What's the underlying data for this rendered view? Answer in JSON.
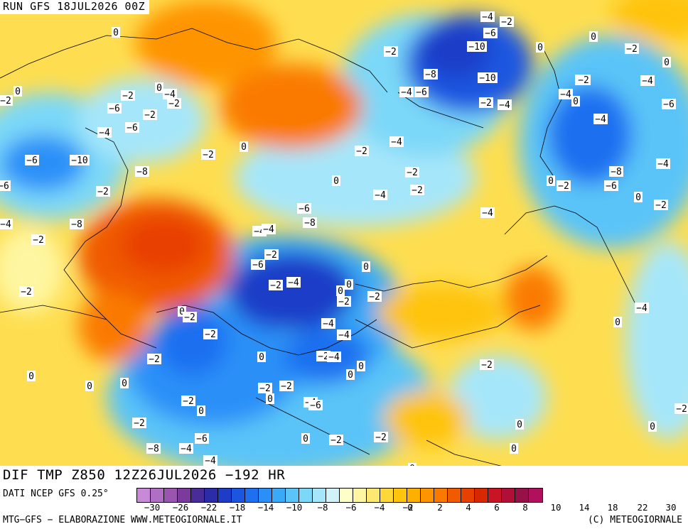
{
  "header": {
    "run": "RUN GFS 18JUL2026 00Z"
  },
  "title": "DIF TMP Z850 12Z26JUL2026 −192 HR",
  "footer": {
    "source": "DATI NCEP GFS 0.25°",
    "credit_left": "MTG−GFS − ELABORAZIONE WWW.METEOGIORNALE.IT",
    "credit_right": "(C) METEOGIORNALE"
  },
  "legend": {
    "colors": [
      "#c88ad8",
      "#b06ec4",
      "#9a55b0",
      "#7c3a9c",
      "#4a2c98",
      "#2c2ca8",
      "#1e3cc8",
      "#1a56e0",
      "#1e70f0",
      "#2a90f8",
      "#3aaaf8",
      "#5ac4f8",
      "#7cd8f8",
      "#a6e6fa",
      "#d2f2fa",
      "#fefec8",
      "#fef6a0",
      "#fee870",
      "#fed838",
      "#fec410",
      "#feb000",
      "#fe9400",
      "#fa7a00",
      "#f05a00",
      "#e84000",
      "#d82800",
      "#c81424",
      "#b01038",
      "#981048",
      "#b0105c"
    ],
    "ticks": [
      "−30",
      "−26",
      "−22",
      "−18",
      "−14",
      "−10",
      "−8",
      "−6",
      "−4",
      "−2",
      "0",
      "2",
      "4",
      "6",
      "8",
      "10",
      "14",
      "18",
      "22",
      "30"
    ]
  },
  "map_labels": [
    {
      "text": "0"
    },
    {
      "text": "−4"
    },
    {
      "text": "−2"
    },
    {
      "text": "−6"
    },
    {
      "text": "−10"
    },
    {
      "text": "−8"
    },
    {
      "text": "−10"
    },
    {
      "text": "−4"
    },
    {
      "text": "−6"
    },
    {
      "text": "−2"
    },
    {
      "text": "−4"
    },
    {
      "text": "−2"
    },
    {
      "text": "0"
    },
    {
      "text": "0"
    },
    {
      "text": "−2"
    },
    {
      "text": "−4"
    },
    {
      "text": "0"
    },
    {
      "text": "−2"
    },
    {
      "text": "−4"
    },
    {
      "text": "0"
    },
    {
      "text": "−4"
    },
    {
      "text": "−6"
    },
    {
      "text": "−8"
    },
    {
      "text": "0"
    },
    {
      "text": "−2"
    },
    {
      "text": "−6"
    },
    {
      "text": "−4"
    },
    {
      "text": "−2"
    },
    {
      "text": "0"
    },
    {
      "text": "−2"
    },
    {
      "text": "−2"
    },
    {
      "text": "0"
    },
    {
      "text": "−2"
    },
    {
      "text": "0"
    },
    {
      "text": "−4"
    },
    {
      "text": "−2"
    },
    {
      "text": "−2"
    },
    {
      "text": "−6"
    },
    {
      "text": "−4"
    },
    {
      "text": "−6"
    },
    {
      "text": "−2"
    },
    {
      "text": "0"
    },
    {
      "text": "−2"
    },
    {
      "text": "0"
    },
    {
      "text": "−4"
    },
    {
      "text": "−2"
    },
    {
      "text": "−4"
    },
    {
      "text": "−2"
    },
    {
      "text": "−4"
    },
    {
      "text": "−8"
    },
    {
      "text": "−10"
    },
    {
      "text": "−6"
    },
    {
      "text": "−6"
    },
    {
      "text": "−4"
    },
    {
      "text": "−2"
    },
    {
      "text": "−8"
    },
    {
      "text": "−2"
    },
    {
      "text": "−6"
    },
    {
      "text": "−8"
    },
    {
      "text": "−4"
    },
    {
      "text": "−4"
    },
    {
      "text": "−2"
    },
    {
      "text": "−6"
    },
    {
      "text": "−2"
    },
    {
      "text": "−4"
    },
    {
      "text": "0"
    },
    {
      "text": "0"
    },
    {
      "text": "−2"
    },
    {
      "text": "0"
    },
    {
      "text": "−2"
    },
    {
      "text": "−4"
    },
    {
      "text": "−4"
    },
    {
      "text": "−2"
    },
    {
      "text": "0"
    },
    {
      "text": "−2"
    },
    {
      "text": "−2"
    },
    {
      "text": "0"
    },
    {
      "text": "−2"
    },
    {
      "text": "−4"
    },
    {
      "text": "0"
    },
    {
      "text": "0"
    },
    {
      "text": "−2"
    },
    {
      "text": "0"
    },
    {
      "text": "0"
    },
    {
      "text": "0"
    },
    {
      "text": "−2"
    },
    {
      "text": "0"
    },
    {
      "text": "−2"
    },
    {
      "text": "−2"
    },
    {
      "text": "0"
    },
    {
      "text": "−4"
    },
    {
      "text": "−6"
    },
    {
      "text": "−2"
    },
    {
      "text": "−8"
    },
    {
      "text": "−4"
    },
    {
      "text": "−6"
    },
    {
      "text": "−4"
    },
    {
      "text": "0"
    },
    {
      "text": "−2"
    },
    {
      "text": "−2"
    },
    {
      "text": "0"
    },
    {
      "text": "0"
    },
    {
      "text": "0"
    },
    {
      "text": "0"
    },
    {
      "text": "0"
    },
    {
      "text": "−2"
    },
    {
      "text": "−4"
    },
    {
      "text": "0"
    },
    {
      "text": "−2"
    }
  ]
}
